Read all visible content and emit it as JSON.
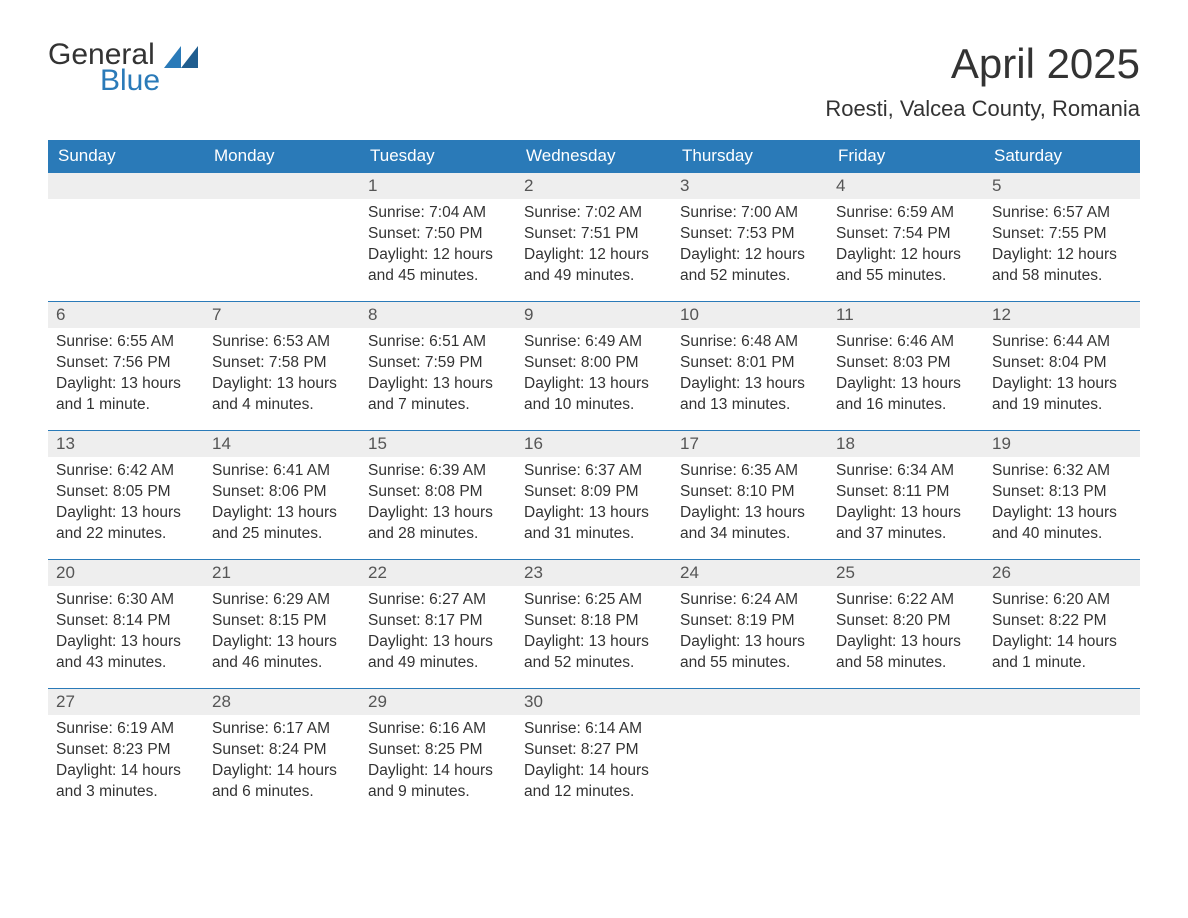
{
  "brand": {
    "general": "General",
    "blue": "Blue",
    "accent": "#2a7ab8"
  },
  "title": "April 2025",
  "location": "Roesti, Valcea County, Romania",
  "weekdays": [
    "Sunday",
    "Monday",
    "Tuesday",
    "Wednesday",
    "Thursday",
    "Friday",
    "Saturday"
  ],
  "colors": {
    "header_bg": "#2a7ab8",
    "header_fg": "#ffffff",
    "daynum_bg": "#eeeeee",
    "text": "#333333",
    "rule": "#2a7ab8",
    "background": "#ffffff"
  },
  "typography": {
    "title_fontsize": 42,
    "location_fontsize": 22,
    "weekday_fontsize": 17,
    "body_fontsize": 15.5,
    "font_family": "Arial"
  },
  "weeks": [
    [
      {
        "n": "",
        "sunrise": "",
        "sunset": "",
        "daylight": ""
      },
      {
        "n": "",
        "sunrise": "",
        "sunset": "",
        "daylight": ""
      },
      {
        "n": "1",
        "sunrise": "Sunrise: 7:04 AM",
        "sunset": "Sunset: 7:50 PM",
        "daylight": "Daylight: 12 hours and 45 minutes."
      },
      {
        "n": "2",
        "sunrise": "Sunrise: 7:02 AM",
        "sunset": "Sunset: 7:51 PM",
        "daylight": "Daylight: 12 hours and 49 minutes."
      },
      {
        "n": "3",
        "sunrise": "Sunrise: 7:00 AM",
        "sunset": "Sunset: 7:53 PM",
        "daylight": "Daylight: 12 hours and 52 minutes."
      },
      {
        "n": "4",
        "sunrise": "Sunrise: 6:59 AM",
        "sunset": "Sunset: 7:54 PM",
        "daylight": "Daylight: 12 hours and 55 minutes."
      },
      {
        "n": "5",
        "sunrise": "Sunrise: 6:57 AM",
        "sunset": "Sunset: 7:55 PM",
        "daylight": "Daylight: 12 hours and 58 minutes."
      }
    ],
    [
      {
        "n": "6",
        "sunrise": "Sunrise: 6:55 AM",
        "sunset": "Sunset: 7:56 PM",
        "daylight": "Daylight: 13 hours and 1 minute."
      },
      {
        "n": "7",
        "sunrise": "Sunrise: 6:53 AM",
        "sunset": "Sunset: 7:58 PM",
        "daylight": "Daylight: 13 hours and 4 minutes."
      },
      {
        "n": "8",
        "sunrise": "Sunrise: 6:51 AM",
        "sunset": "Sunset: 7:59 PM",
        "daylight": "Daylight: 13 hours and 7 minutes."
      },
      {
        "n": "9",
        "sunrise": "Sunrise: 6:49 AM",
        "sunset": "Sunset: 8:00 PM",
        "daylight": "Daylight: 13 hours and 10 minutes."
      },
      {
        "n": "10",
        "sunrise": "Sunrise: 6:48 AM",
        "sunset": "Sunset: 8:01 PM",
        "daylight": "Daylight: 13 hours and 13 minutes."
      },
      {
        "n": "11",
        "sunrise": "Sunrise: 6:46 AM",
        "sunset": "Sunset: 8:03 PM",
        "daylight": "Daylight: 13 hours and 16 minutes."
      },
      {
        "n": "12",
        "sunrise": "Sunrise: 6:44 AM",
        "sunset": "Sunset: 8:04 PM",
        "daylight": "Daylight: 13 hours and 19 minutes."
      }
    ],
    [
      {
        "n": "13",
        "sunrise": "Sunrise: 6:42 AM",
        "sunset": "Sunset: 8:05 PM",
        "daylight": "Daylight: 13 hours and 22 minutes."
      },
      {
        "n": "14",
        "sunrise": "Sunrise: 6:41 AM",
        "sunset": "Sunset: 8:06 PM",
        "daylight": "Daylight: 13 hours and 25 minutes."
      },
      {
        "n": "15",
        "sunrise": "Sunrise: 6:39 AM",
        "sunset": "Sunset: 8:08 PM",
        "daylight": "Daylight: 13 hours and 28 minutes."
      },
      {
        "n": "16",
        "sunrise": "Sunrise: 6:37 AM",
        "sunset": "Sunset: 8:09 PM",
        "daylight": "Daylight: 13 hours and 31 minutes."
      },
      {
        "n": "17",
        "sunrise": "Sunrise: 6:35 AM",
        "sunset": "Sunset: 8:10 PM",
        "daylight": "Daylight: 13 hours and 34 minutes."
      },
      {
        "n": "18",
        "sunrise": "Sunrise: 6:34 AM",
        "sunset": "Sunset: 8:11 PM",
        "daylight": "Daylight: 13 hours and 37 minutes."
      },
      {
        "n": "19",
        "sunrise": "Sunrise: 6:32 AM",
        "sunset": "Sunset: 8:13 PM",
        "daylight": "Daylight: 13 hours and 40 minutes."
      }
    ],
    [
      {
        "n": "20",
        "sunrise": "Sunrise: 6:30 AM",
        "sunset": "Sunset: 8:14 PM",
        "daylight": "Daylight: 13 hours and 43 minutes."
      },
      {
        "n": "21",
        "sunrise": "Sunrise: 6:29 AM",
        "sunset": "Sunset: 8:15 PM",
        "daylight": "Daylight: 13 hours and 46 minutes."
      },
      {
        "n": "22",
        "sunrise": "Sunrise: 6:27 AM",
        "sunset": "Sunset: 8:17 PM",
        "daylight": "Daylight: 13 hours and 49 minutes."
      },
      {
        "n": "23",
        "sunrise": "Sunrise: 6:25 AM",
        "sunset": "Sunset: 8:18 PM",
        "daylight": "Daylight: 13 hours and 52 minutes."
      },
      {
        "n": "24",
        "sunrise": "Sunrise: 6:24 AM",
        "sunset": "Sunset: 8:19 PM",
        "daylight": "Daylight: 13 hours and 55 minutes."
      },
      {
        "n": "25",
        "sunrise": "Sunrise: 6:22 AM",
        "sunset": "Sunset: 8:20 PM",
        "daylight": "Daylight: 13 hours and 58 minutes."
      },
      {
        "n": "26",
        "sunrise": "Sunrise: 6:20 AM",
        "sunset": "Sunset: 8:22 PM",
        "daylight": "Daylight: 14 hours and 1 minute."
      }
    ],
    [
      {
        "n": "27",
        "sunrise": "Sunrise: 6:19 AM",
        "sunset": "Sunset: 8:23 PM",
        "daylight": "Daylight: 14 hours and 3 minutes."
      },
      {
        "n": "28",
        "sunrise": "Sunrise: 6:17 AM",
        "sunset": "Sunset: 8:24 PM",
        "daylight": "Daylight: 14 hours and 6 minutes."
      },
      {
        "n": "29",
        "sunrise": "Sunrise: 6:16 AM",
        "sunset": "Sunset: 8:25 PM",
        "daylight": "Daylight: 14 hours and 9 minutes."
      },
      {
        "n": "30",
        "sunrise": "Sunrise: 6:14 AM",
        "sunset": "Sunset: 8:27 PM",
        "daylight": "Daylight: 14 hours and 12 minutes."
      },
      {
        "n": "",
        "sunrise": "",
        "sunset": "",
        "daylight": ""
      },
      {
        "n": "",
        "sunrise": "",
        "sunset": "",
        "daylight": ""
      },
      {
        "n": "",
        "sunrise": "",
        "sunset": "",
        "daylight": ""
      }
    ]
  ]
}
